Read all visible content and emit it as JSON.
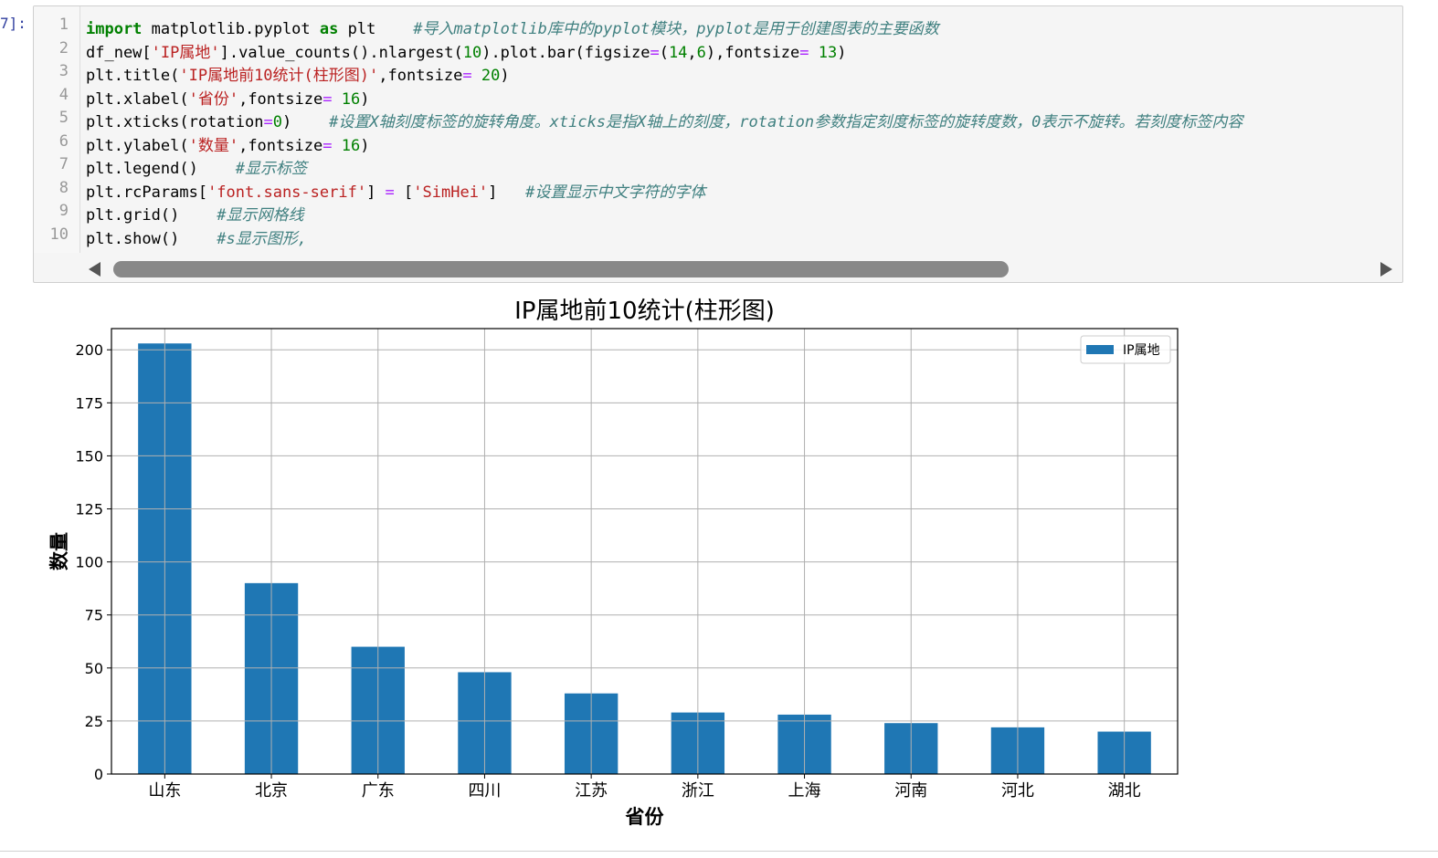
{
  "cell_prompt": "7]:",
  "code": {
    "line_numbers": [
      "1",
      "2",
      "3",
      "4",
      "5",
      "6",
      "7",
      "8",
      "9",
      "10"
    ],
    "lines": [
      [
        {
          "t": "import",
          "c": "kw"
        },
        {
          "t": " matplotlib.pyplot ",
          "c": ""
        },
        {
          "t": "as",
          "c": "kw"
        },
        {
          "t": " plt    ",
          "c": ""
        },
        {
          "t": "#导入matplotlib库中的pyplot模块，pyplot是用于创建图表的主要函数",
          "c": "cm"
        }
      ],
      [
        {
          "t": "df_new[",
          "c": ""
        },
        {
          "t": "'IP属地'",
          "c": "str"
        },
        {
          "t": "].value_counts().nlargest(",
          "c": ""
        },
        {
          "t": "10",
          "c": "num"
        },
        {
          "t": ").plot.bar(figsize",
          "c": ""
        },
        {
          "t": "=",
          "c": "op"
        },
        {
          "t": "(",
          "c": ""
        },
        {
          "t": "14",
          "c": "num"
        },
        {
          "t": ",",
          "c": ""
        },
        {
          "t": "6",
          "c": "num"
        },
        {
          "t": "),fontsize",
          "c": ""
        },
        {
          "t": "=",
          "c": "op"
        },
        {
          "t": " ",
          "c": ""
        },
        {
          "t": "13",
          "c": "num"
        },
        {
          "t": ")",
          "c": ""
        }
      ],
      [
        {
          "t": "plt.title(",
          "c": ""
        },
        {
          "t": "'IP属地前10统计(柱形图)'",
          "c": "str"
        },
        {
          "t": ",fontsize",
          "c": ""
        },
        {
          "t": "=",
          "c": "op"
        },
        {
          "t": " ",
          "c": ""
        },
        {
          "t": "20",
          "c": "num"
        },
        {
          "t": ")",
          "c": ""
        }
      ],
      [
        {
          "t": "plt.xlabel(",
          "c": ""
        },
        {
          "t": "'省份'",
          "c": "str"
        },
        {
          "t": ",fontsize",
          "c": ""
        },
        {
          "t": "=",
          "c": "op"
        },
        {
          "t": " ",
          "c": ""
        },
        {
          "t": "16",
          "c": "num"
        },
        {
          "t": ")",
          "c": ""
        }
      ],
      [
        {
          "t": "plt.xticks(rotation",
          "c": ""
        },
        {
          "t": "=",
          "c": "op"
        },
        {
          "t": "0",
          "c": "num"
        },
        {
          "t": ")    ",
          "c": ""
        },
        {
          "t": "#设置X轴刻度标签的旋转角度。xticks是指X轴上的刻度，rotation参数指定刻度标签的旋转度数，0表示不旋转。若刻度标签内容",
          "c": "cm"
        }
      ],
      [
        {
          "t": "plt.ylabel(",
          "c": ""
        },
        {
          "t": "'数量'",
          "c": "str"
        },
        {
          "t": ",fontsize",
          "c": ""
        },
        {
          "t": "=",
          "c": "op"
        },
        {
          "t": " ",
          "c": ""
        },
        {
          "t": "16",
          "c": "num"
        },
        {
          "t": ")",
          "c": ""
        }
      ],
      [
        {
          "t": "plt.legend()    ",
          "c": ""
        },
        {
          "t": "#显示标签",
          "c": "cm"
        }
      ],
      [
        {
          "t": "plt.rcParams[",
          "c": ""
        },
        {
          "t": "'font.sans-serif'",
          "c": "str"
        },
        {
          "t": "] ",
          "c": ""
        },
        {
          "t": "=",
          "c": "op"
        },
        {
          "t": " [",
          "c": ""
        },
        {
          "t": "'SimHei'",
          "c": "str"
        },
        {
          "t": "]   ",
          "c": ""
        },
        {
          "t": "#设置显示中文字符的字体",
          "c": "cm"
        }
      ],
      [
        {
          "t": "plt.grid()    ",
          "c": ""
        },
        {
          "t": "#显示网格线",
          "c": "cm"
        }
      ],
      [
        {
          "t": "plt.show()    ",
          "c": ""
        },
        {
          "t": "#s显示图形,",
          "c": "cm"
        }
      ]
    ]
  },
  "chart_data": {
    "type": "bar",
    "title": "IP属地前10统计(柱形图)",
    "xlabel": "省份",
    "ylabel": "数量",
    "categories": [
      "山东",
      "北京",
      "广东",
      "四川",
      "江苏",
      "浙江",
      "上海",
      "河南",
      "河北",
      "湖北"
    ],
    "series": [
      {
        "name": "IP属地",
        "values": [
          203,
          90,
          60,
          48,
          38,
          29,
          28,
          24,
          22,
          20
        ]
      }
    ],
    "ylim": [
      0,
      210
    ],
    "yticks": [
      0,
      25,
      50,
      75,
      100,
      125,
      150,
      175,
      200
    ],
    "grid": true,
    "legend_position": "top-right",
    "bar_color": "#1f77b4"
  }
}
